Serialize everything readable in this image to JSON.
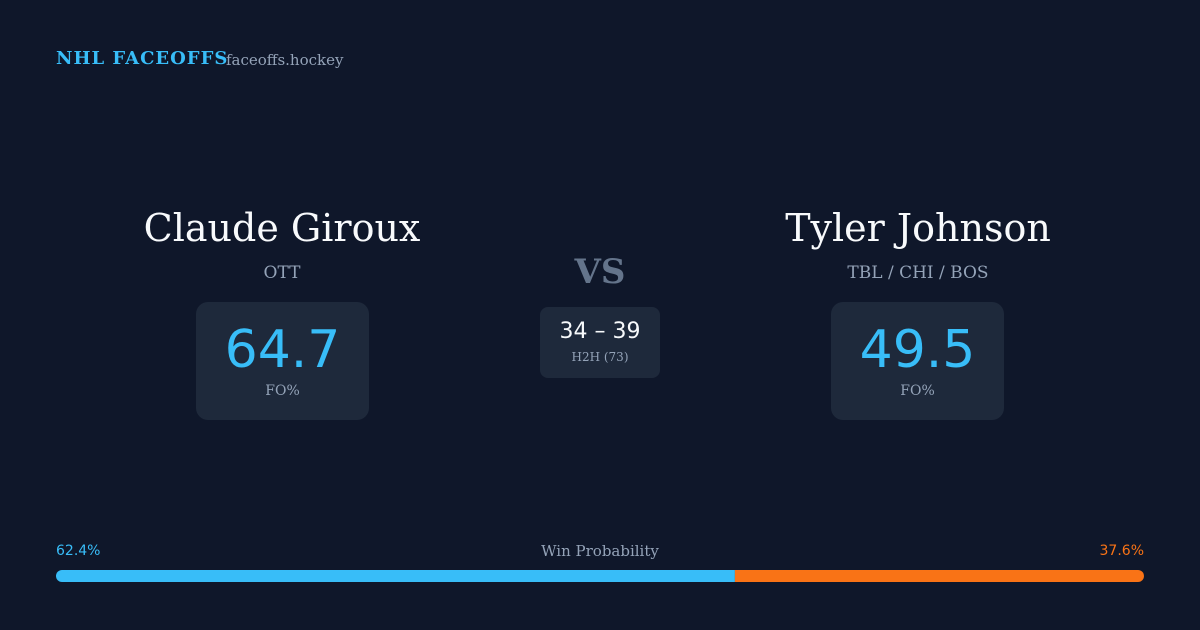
{
  "header": {
    "brand": "NHL FACEOFFS",
    "site": "faceoffs.hockey"
  },
  "players": [
    {
      "name": "Claude Giroux",
      "team": "OTT",
      "fo_pct": 64.7,
      "fo_label": "FO%"
    },
    {
      "name": "Tyler Johnson",
      "team": "TBL / CHI / BOS",
      "fo_pct": 49.5,
      "fo_label": "FO%"
    }
  ],
  "vs": "VS",
  "h2h": {
    "score": "34 – 39",
    "label": "H2H (73)"
  },
  "win_probability": {
    "label": "Win Probability",
    "values": [
      62.4,
      37.6
    ],
    "value_labels": [
      "62.4%",
      "37.6%"
    ],
    "colors": [
      "#38bdf8",
      "#f97316"
    ]
  }
}
